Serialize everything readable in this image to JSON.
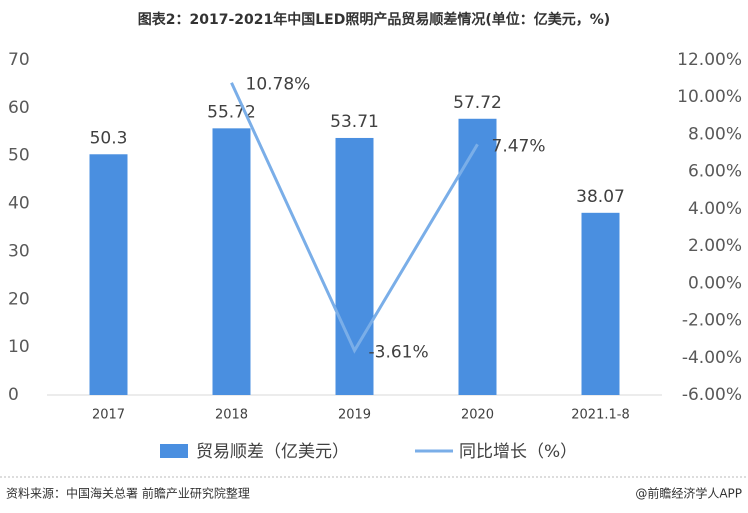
{
  "chart_data": {
    "type": "bar",
    "title": "图表2：2017-2021年中国LED照明产品贸易顺差情况(单位：亿美元，%)",
    "categories": [
      "2017",
      "2018",
      "2019",
      "2020",
      "2021.1-8"
    ],
    "series": [
      {
        "name": "贸易顺差（亿美元）",
        "type": "bar",
        "color": "#4a8fe0",
        "values": [
          50.3,
          55.72,
          53.71,
          57.72,
          38.07
        ]
      },
      {
        "name": "同比增长（%）",
        "type": "line",
        "axis": "y2",
        "color": "#7aaee8",
        "values": [
          null,
          10.78,
          -3.61,
          7.47,
          null
        ],
        "value_labels": [
          null,
          "10.78%",
          "-3.61%",
          "7.47%",
          null
        ]
      }
    ],
    "ylim": [
      0,
      70
    ],
    "yticks": [
      0,
      10,
      20,
      30,
      40,
      50,
      60,
      70
    ],
    "y2lim": [
      -6,
      12
    ],
    "y2ticks": [
      {
        "value": -6,
        "label": "-6.00%"
      },
      {
        "value": -4,
        "label": "-4.00%"
      },
      {
        "value": -2,
        "label": "-2.00%"
      },
      {
        "value": 0,
        "label": "0.00%"
      },
      {
        "value": 2,
        "label": "2.00%"
      },
      {
        "value": 4,
        "label": "4.00%"
      },
      {
        "value": 6,
        "label": "6.00%"
      },
      {
        "value": 8,
        "label": "8.00%"
      },
      {
        "value": 10,
        "label": "10.00%"
      },
      {
        "value": 12,
        "label": "12.00%"
      }
    ],
    "source": "资料来源：中国海关总署 前瞻产业研究院整理",
    "credit": "@前瞻经济学人APP"
  }
}
